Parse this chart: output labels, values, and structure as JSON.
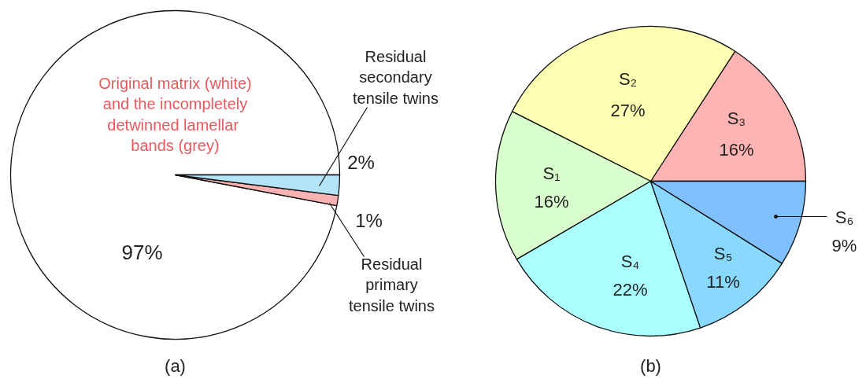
{
  "chart_data": [
    {
      "type": "pie",
      "title": "(a)",
      "categories": [
        "Original matrix (white)\nand the incompletely\ndetwinned  lamellar\nbands (grey)",
        "Residual\nprimary\ntensile twins",
        "Residual\nsecondary\ntensile twins"
      ],
      "values": [
        97,
        1,
        2
      ],
      "value_labels": [
        "97%",
        "1%",
        "2%"
      ],
      "colors": [
        "#ffffff",
        "#f9b3b3",
        "#b3e4f7"
      ]
    },
    {
      "type": "pie",
      "title": "(b)",
      "categories": [
        "S₃",
        "S₂",
        "S₁",
        "S₄",
        "S₅",
        "S₆"
      ],
      "values": [
        16,
        27,
        16,
        22,
        11,
        9
      ],
      "value_labels": [
        "16%",
        "27%",
        "16%",
        "22%",
        "11%",
        "9%"
      ],
      "colors": [
        "#ffb3b3",
        "#ffffb3",
        "#d9ffcc",
        "#aaffff",
        "#88d8ff",
        "#80c0ff"
      ]
    }
  ]
}
